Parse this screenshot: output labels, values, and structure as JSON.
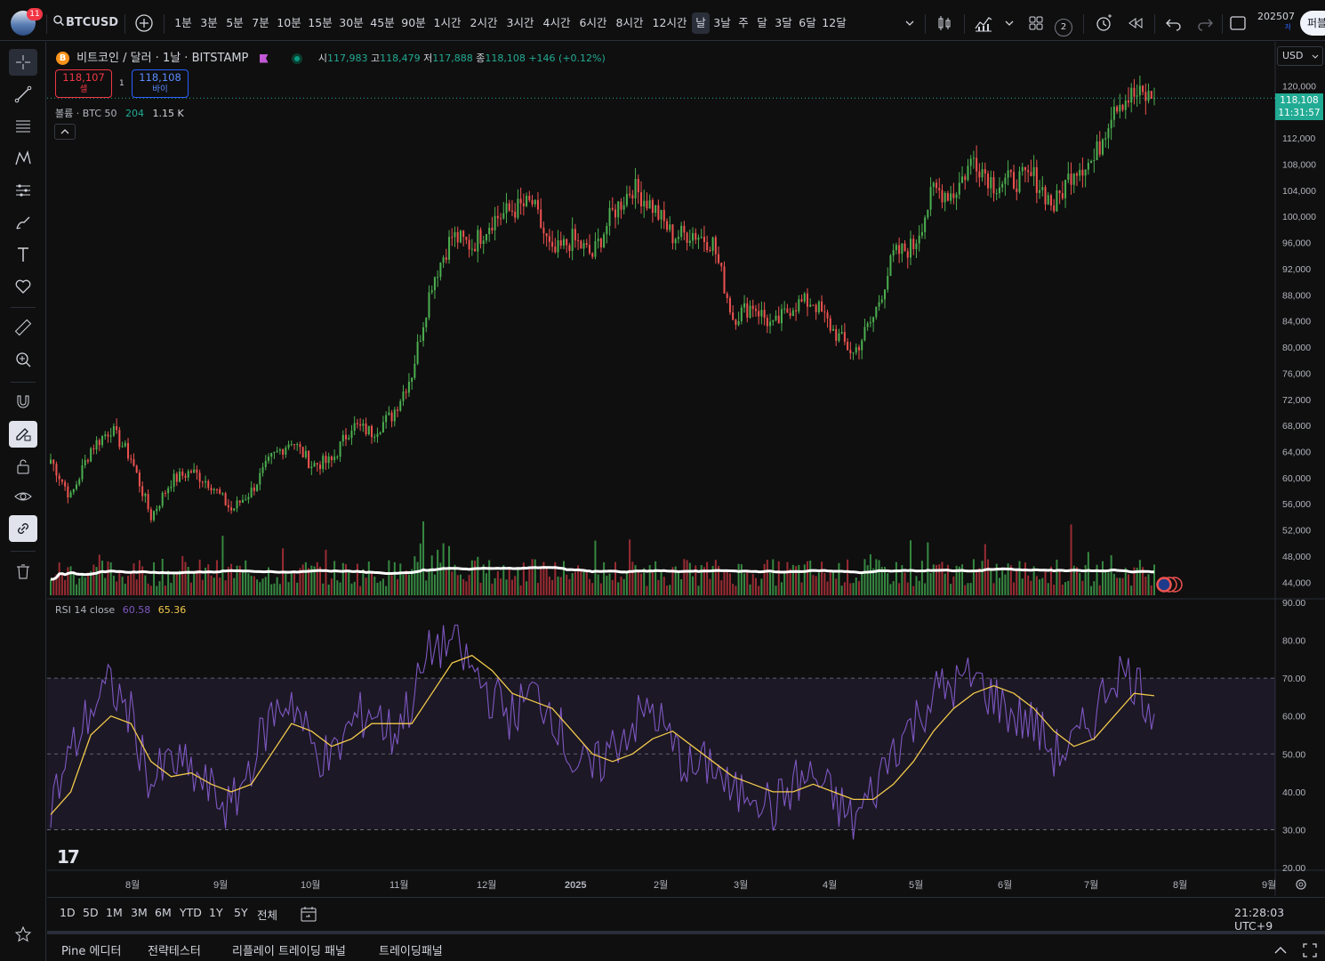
{
  "header": {
    "notifications": "11",
    "symbol": "BTCUSD",
    "timeframes": [
      "1분",
      "3분",
      "5분",
      "7분",
      "10분",
      "15분",
      "30분",
      "45분",
      "90분",
      "1시간",
      "2시간",
      "3시간",
      "4시간",
      "6시간",
      "8시간",
      "12시간",
      "날",
      "3날",
      "주",
      "달",
      "3달",
      "6달",
      "12달"
    ],
    "active_timeframe": "날",
    "layout_badge": "2",
    "date_right": "202507",
    "date_right_sub": "저",
    "publish_label": "퍼블"
  },
  "legend": {
    "title": "비트코인 / 달러 · 1날 · BITSTAMP",
    "o_label": "시",
    "o": "117,983",
    "h_label": "고",
    "h": "118,479",
    "l_label": "저",
    "l": "117,888",
    "c_label": "종",
    "c": "118,108",
    "change": "+146 (+0.12%)",
    "sell_price": "118,107",
    "sell_label": "셀",
    "spread": "1",
    "buy_price": "118,108",
    "buy_label": "바이",
    "volume_label": "볼륨 · BTC 50",
    "volume_val1": "204",
    "volume_val2": "1.15 K",
    "rsi_label": "RSI 14 close",
    "rsi_val": "60.58",
    "rsi_ma": "65.36"
  },
  "price_axis": {
    "currency": "USD",
    "labels": [
      "120,000",
      "112,000",
      "108,000",
      "104,000",
      "100,000",
      "96,000",
      "92,000",
      "88,000",
      "84,000",
      "80,000",
      "76,000",
      "72,000",
      "68,000",
      "64,000",
      "60,000",
      "56,000",
      "52,000",
      "48,000",
      "44,000"
    ],
    "last_price": "118,108",
    "countdown": "11:31:57"
  },
  "rsi_axis": {
    "labels": [
      "90.00",
      "80.00",
      "70.00",
      "60.00",
      "50.00",
      "40.00",
      "30.00",
      "20.00"
    ]
  },
  "time_axis": {
    "labels": [
      "8월",
      "9월",
      "10월",
      "11월",
      "12월",
      "2025",
      "2월",
      "3월",
      "4월",
      "5월",
      "6월",
      "7월",
      "8월",
      "9월"
    ]
  },
  "range_bar": {
    "ranges": [
      "1D",
      "5D",
      "1M",
      "3M",
      "6M",
      "YTD",
      "1Y",
      "5Y",
      "전체"
    ],
    "clock": "21:28:03 UTC+9"
  },
  "bottom_tabs": [
    "Pine 에디터",
    "전략테스터",
    "리플레이 트레이딩 패널",
    "트레이딩패널"
  ],
  "colors": {
    "up": "#26a69a",
    "up_bright": "#4caf50",
    "down": "#ef5350",
    "rsi": "#7e57c2",
    "rsi_ma": "#f2c94c",
    "accent_green": "#089981"
  },
  "chart_data": {
    "type": "candlestick",
    "symbol": "BTCUSD",
    "interval": "1D",
    "price_range": [
      42000,
      124000
    ],
    "close_series": [
      [
        "2024-07-01",
        62800
      ],
      [
        "2024-07-08",
        57000
      ],
      [
        "2024-07-15",
        64500
      ],
      [
        "2024-07-22",
        67500
      ],
      [
        "2024-07-29",
        63000
      ],
      [
        "2024-08-05",
        54000
      ],
      [
        "2024-08-12",
        59500
      ],
      [
        "2024-08-19",
        61000
      ],
      [
        "2024-08-26",
        59000
      ],
      [
        "2024-09-02",
        55000
      ],
      [
        "2024-09-09",
        58000
      ],
      [
        "2024-09-16",
        63000
      ],
      [
        "2024-09-23",
        65800
      ],
      [
        "2024-09-30",
        62000
      ],
      [
        "2024-10-07",
        62500
      ],
      [
        "2024-10-14",
        68000
      ],
      [
        "2024-10-21",
        67000
      ],
      [
        "2024-10-28",
        69500
      ],
      [
        "2024-11-04",
        76000
      ],
      [
        "2024-11-11",
        90000
      ],
      [
        "2024-11-18",
        97000
      ],
      [
        "2024-11-25",
        95500
      ],
      [
        "2024-12-02",
        99500
      ],
      [
        "2024-12-09",
        101000
      ],
      [
        "2024-12-16",
        102000
      ],
      [
        "2024-12-23",
        94000
      ],
      [
        "2024-12-30",
        96500
      ],
      [
        "2025-01-06",
        94000
      ],
      [
        "2025-01-13",
        100500
      ],
      [
        "2025-01-20",
        104500
      ],
      [
        "2025-01-27",
        101500
      ],
      [
        "2025-02-03",
        97000
      ],
      [
        "2025-02-10",
        97500
      ],
      [
        "2025-02-17",
        96000
      ],
      [
        "2025-02-24",
        84500
      ],
      [
        "2025-03-03",
        86500
      ],
      [
        "2025-03-10",
        83000
      ],
      [
        "2025-03-17",
        86500
      ],
      [
        "2025-03-24",
        87000
      ],
      [
        "2025-03-31",
        82500
      ],
      [
        "2025-04-07",
        79000
      ],
      [
        "2025-04-14",
        84500
      ],
      [
        "2025-04-21",
        94000
      ],
      [
        "2025-04-28",
        95500
      ],
      [
        "2025-05-05",
        104000
      ],
      [
        "2025-05-12",
        103500
      ],
      [
        "2025-05-19",
        109000
      ],
      [
        "2025-05-26",
        105000
      ],
      [
        "2025-06-02",
        105500
      ],
      [
        "2025-06-09",
        106000
      ],
      [
        "2025-06-16",
        101500
      ],
      [
        "2025-06-23",
        107500
      ],
      [
        "2025-06-30",
        108500
      ],
      [
        "2025-07-07",
        117500
      ],
      [
        "2025-07-14",
        118500
      ],
      [
        "2025-07-21",
        118108
      ]
    ],
    "rsi": {
      "period": 14,
      "levels": [
        70,
        50,
        30
      ],
      "range": [
        20,
        90
      ],
      "values": [
        36,
        50,
        62,
        68,
        60,
        42,
        48,
        45,
        40,
        35,
        48,
        60,
        65,
        52,
        48,
        58,
        62,
        55,
        64,
        78,
        80,
        72,
        65,
        60,
        66,
        62,
        48,
        45,
        52,
        58,
        62,
        52,
        45,
        48,
        38,
        42,
        35,
        42,
        44,
        38,
        32,
        40,
        52,
        58,
        66,
        68,
        70,
        65,
        60,
        58,
        50,
        52,
        60,
        72,
        70,
        60.58
      ],
      "ma_values": [
        34,
        40,
        55,
        60,
        58,
        48,
        44,
        45,
        42,
        40,
        42,
        50,
        58,
        56,
        52,
        54,
        58,
        58,
        58,
        66,
        74,
        76,
        72,
        66,
        64,
        62,
        56,
        50,
        48,
        50,
        54,
        56,
        52,
        48,
        44,
        42,
        40,
        40,
        42,
        40,
        38,
        38,
        42,
        48,
        56,
        62,
        66,
        68,
        66,
        62,
        56,
        52,
        54,
        60,
        66,
        65.36
      ]
    }
  }
}
